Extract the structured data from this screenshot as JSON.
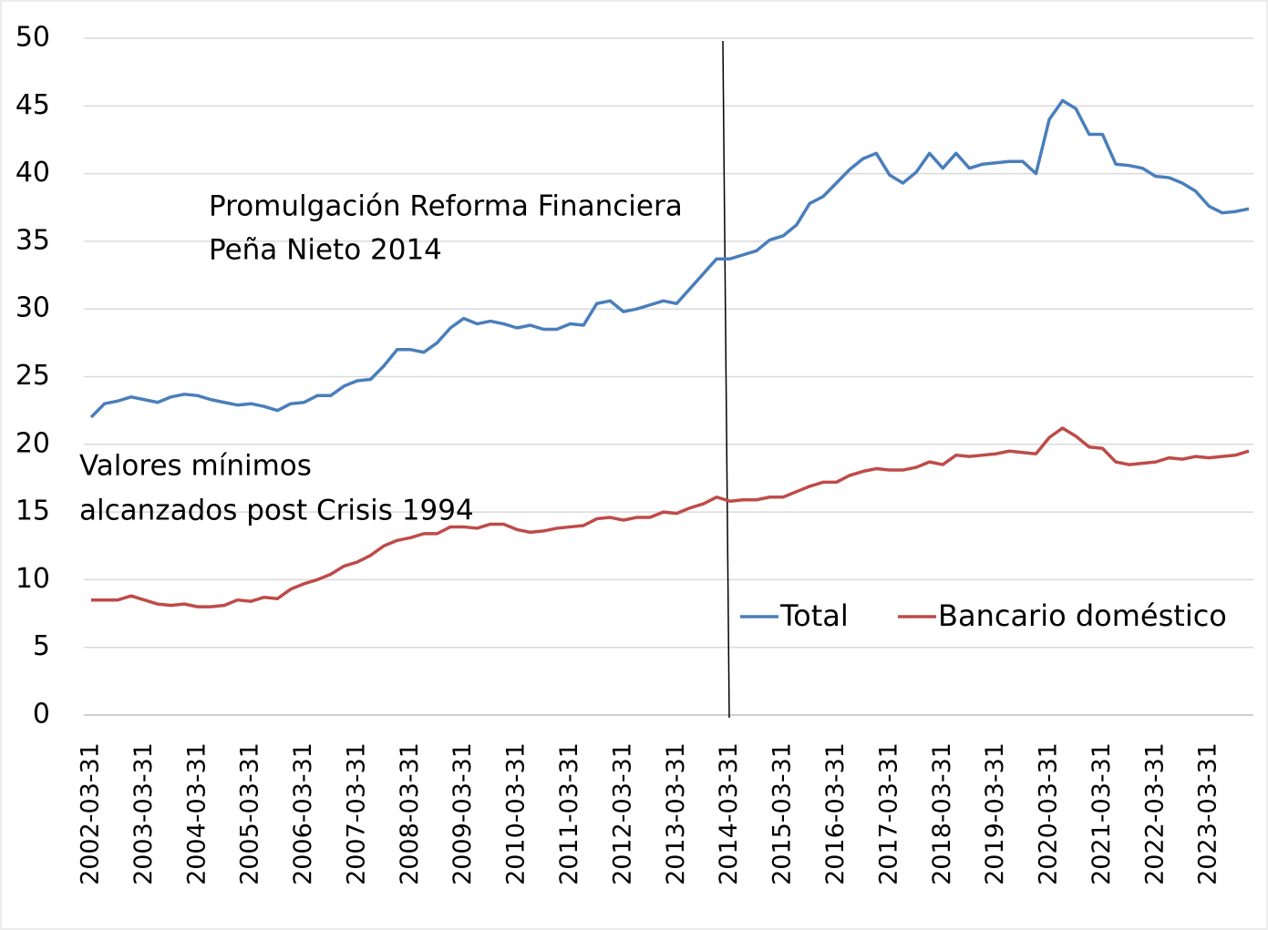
{
  "chart_data": {
    "type": "line",
    "categories": [
      "2002-03-31",
      null,
      null,
      null,
      "2003-03-31",
      null,
      null,
      null,
      "2004-03-31",
      null,
      null,
      null,
      "2005-03-31",
      null,
      null,
      null,
      "2006-03-31",
      null,
      null,
      null,
      "2007-03-31",
      null,
      null,
      null,
      "2008-03-31",
      null,
      null,
      null,
      "2009-03-31",
      null,
      null,
      null,
      "2010-03-31",
      null,
      null,
      null,
      "2011-03-31",
      null,
      null,
      null,
      "2012-03-31",
      null,
      null,
      null,
      "2013-03-31",
      null,
      null,
      null,
      "2014-03-31",
      null,
      null,
      null,
      "2015-03-31",
      null,
      null,
      null,
      "2016-03-31",
      null,
      null,
      null,
      "2017-03-31",
      null,
      null,
      null,
      "2018-03-31",
      null,
      null,
      null,
      "2019-03-31",
      null,
      null,
      null,
      "2020-03-31",
      null,
      null,
      null,
      "2021-03-31",
      null,
      null,
      null,
      "2022-03-31",
      null,
      null,
      null,
      "2023-03-31",
      null,
      null,
      null
    ],
    "series": [
      {
        "name": "Total",
        "color": "#4a7ebb",
        "values": [
          22.0,
          23.0,
          23.2,
          23.5,
          23.3,
          23.1,
          23.5,
          23.7,
          23.6,
          23.3,
          23.1,
          22.9,
          23.0,
          22.8,
          22.5,
          23.0,
          23.1,
          23.6,
          23.6,
          24.3,
          24.7,
          24.8,
          25.8,
          27.0,
          27.0,
          26.8,
          27.5,
          28.6,
          29.3,
          28.9,
          29.1,
          28.9,
          28.6,
          28.8,
          28.5,
          28.5,
          28.9,
          28.8,
          30.4,
          30.6,
          29.8,
          30.0,
          30.3,
          30.6,
          30.4,
          31.5,
          32.6,
          33.7,
          33.7,
          34.0,
          34.3,
          35.1,
          35.4,
          36.2,
          37.8,
          38.3,
          39.3,
          40.3,
          41.1,
          41.5,
          39.9,
          39.3,
          40.1,
          41.5,
          40.4,
          41.5,
          40.4,
          40.7,
          40.8,
          40.9,
          40.9,
          40.0,
          44.0,
          45.4,
          44.8,
          42.9,
          42.9,
          40.7,
          40.6,
          40.4,
          39.8,
          39.7,
          39.3,
          38.7,
          37.6,
          37.1,
          37.2,
          37.4
        ]
      },
      {
        "name": "Bancario doméstico",
        "color": "#be4b48",
        "values": [
          8.5,
          8.5,
          8.5,
          8.8,
          8.5,
          8.2,
          8.1,
          8.2,
          8.0,
          8.0,
          8.1,
          8.5,
          8.4,
          8.7,
          8.6,
          9.3,
          9.7,
          10.0,
          10.4,
          11.0,
          11.3,
          11.8,
          12.5,
          12.9,
          13.1,
          13.4,
          13.4,
          13.9,
          13.9,
          13.8,
          14.1,
          14.1,
          13.7,
          13.5,
          13.6,
          13.8,
          13.9,
          14.0,
          14.5,
          14.6,
          14.4,
          14.6,
          14.6,
          15.0,
          14.9,
          15.3,
          15.6,
          16.1,
          15.8,
          15.9,
          15.9,
          16.1,
          16.1,
          16.5,
          16.9,
          17.2,
          17.2,
          17.7,
          18.0,
          18.2,
          18.1,
          18.1,
          18.3,
          18.7,
          18.5,
          19.2,
          19.1,
          19.2,
          19.3,
          19.5,
          19.4,
          19.3,
          20.5,
          21.2,
          20.6,
          19.8,
          19.7,
          18.7,
          18.5,
          18.6,
          18.7,
          19.0,
          18.9,
          19.1,
          19.0,
          19.1,
          19.2,
          19.5
        ]
      }
    ],
    "annotations": [
      "Promulgación Reforma Financiera",
      "Peña Nieto 2014",
      "Valores mínimos",
      "alcanzados post Crisis 1994"
    ],
    "ylim": [
      0,
      50
    ],
    "yticks": [
      0,
      5,
      10,
      15,
      20,
      25,
      30,
      35,
      40,
      45,
      50
    ],
    "grid": true,
    "legend": "lower right"
  }
}
